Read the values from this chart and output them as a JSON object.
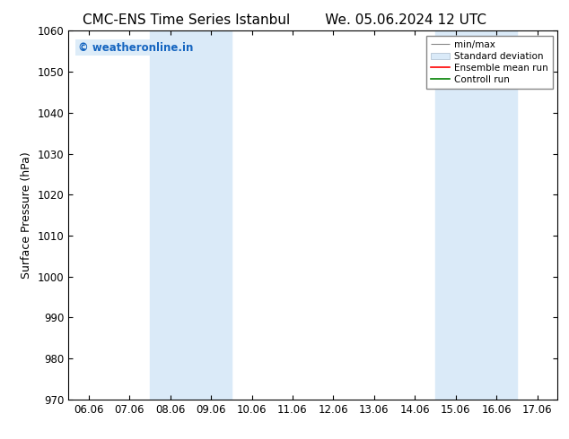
{
  "title_left": "CMC-ENS Time Series Istanbul",
  "title_right": "We. 05.06.2024 12 UTC",
  "ylabel": "Surface Pressure (hPa)",
  "ylim": [
    970,
    1060
  ],
  "yticks": [
    970,
    980,
    990,
    1000,
    1010,
    1020,
    1030,
    1040,
    1050,
    1060
  ],
  "xtick_labels": [
    "06.06",
    "07.06",
    "08.06",
    "09.06",
    "10.06",
    "11.06",
    "12.06",
    "13.06",
    "14.06",
    "15.06",
    "16.06",
    "17.06"
  ],
  "shaded_regions": [
    {
      "xstart": 2,
      "xend": 4,
      "color": "#daeaf8"
    },
    {
      "xstart": 9,
      "xend": 11,
      "color": "#daeaf8"
    }
  ],
  "watermark": "© weatheronline.in",
  "watermark_color": "#1565C0",
  "background_color": "#ffffff",
  "legend_labels": [
    "min/max",
    "Standard deviation",
    "Ensemble mean run",
    "Controll run"
  ],
  "title_fontsize": 11,
  "axis_fontsize": 9,
  "tick_fontsize": 8.5
}
